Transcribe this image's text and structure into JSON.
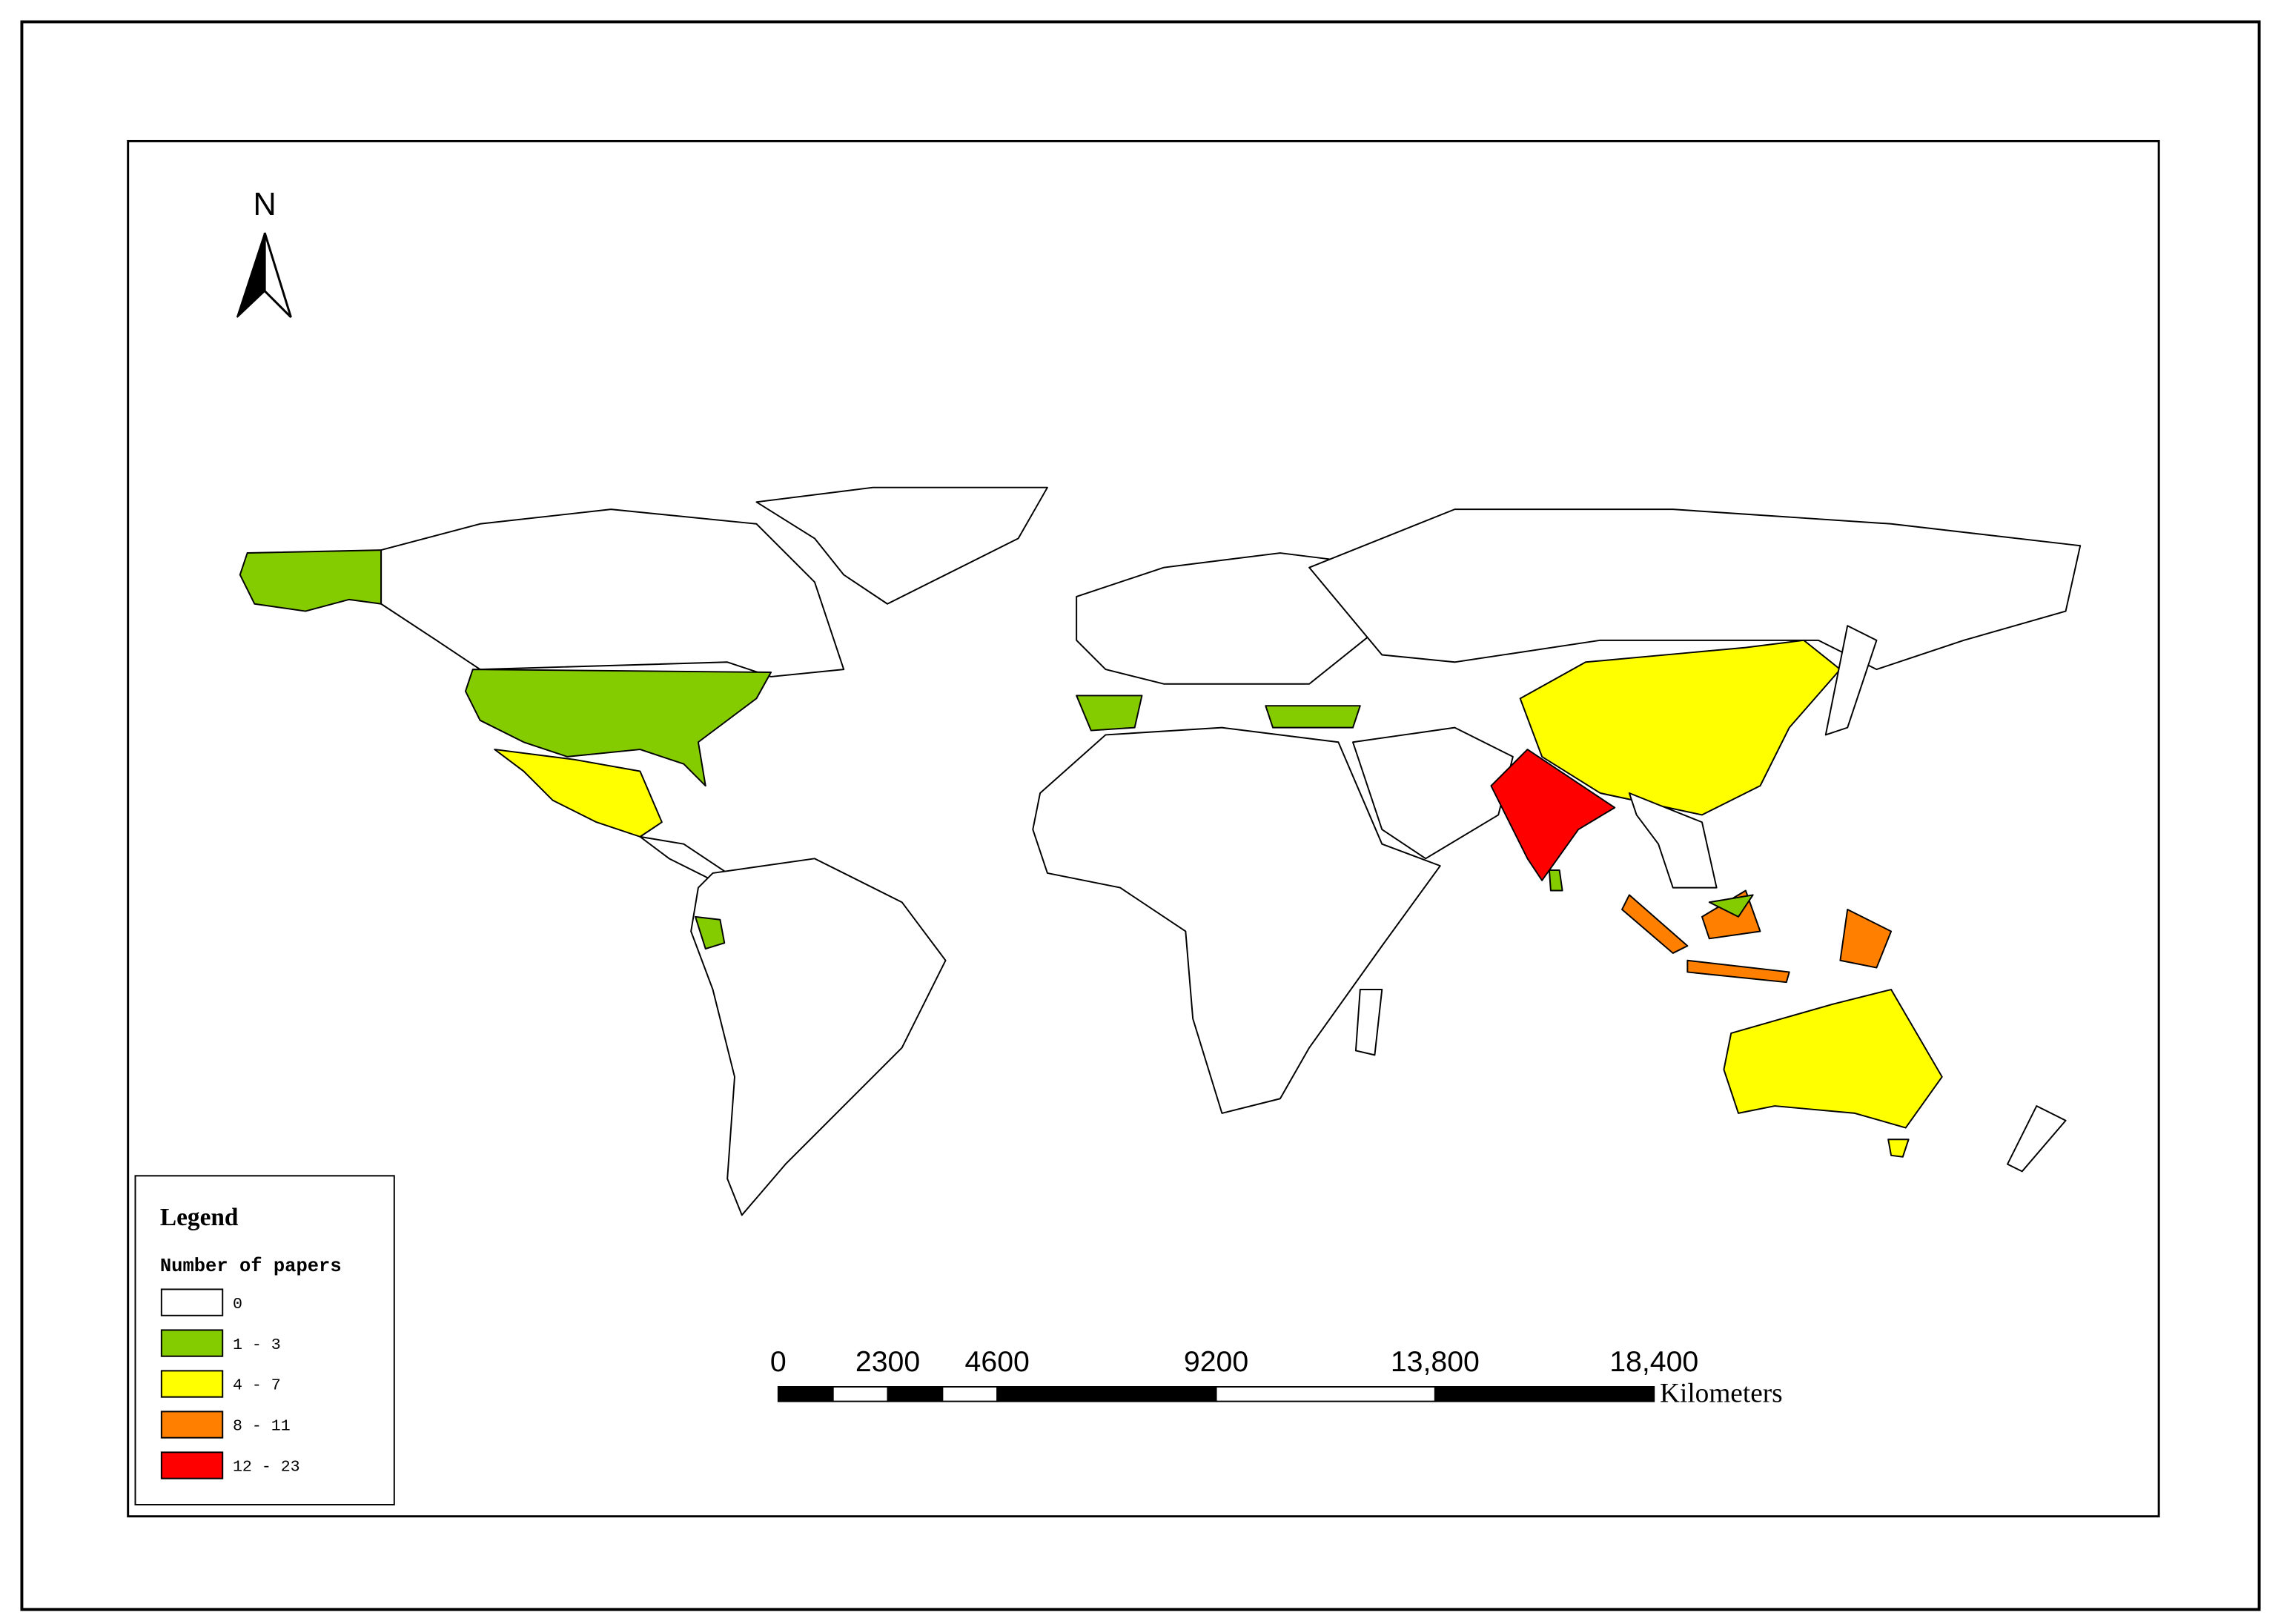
{
  "map": {
    "north_arrow": "N",
    "legend": {
      "title": "Legend",
      "subtitle": "Number of papers",
      "classes": [
        {
          "label": "0",
          "color": "#ffffff"
        },
        {
          "label": "1 - 3",
          "color": "#84cc00"
        },
        {
          "label": "4 - 7",
          "color": "#ffff00"
        },
        {
          "label": "8 - 11",
          "color": "#ff8000"
        },
        {
          "label": "12 - 23",
          "color": "#ff0000"
        }
      ]
    },
    "scale_bar": {
      "ticks": [
        0,
        2300,
        4600,
        9200,
        {
          "value": 13800,
          "label": "13,800"
        },
        {
          "value": 18400,
          "label": "18,400"
        }
      ],
      "unit": "Kilometers"
    }
  }
}
